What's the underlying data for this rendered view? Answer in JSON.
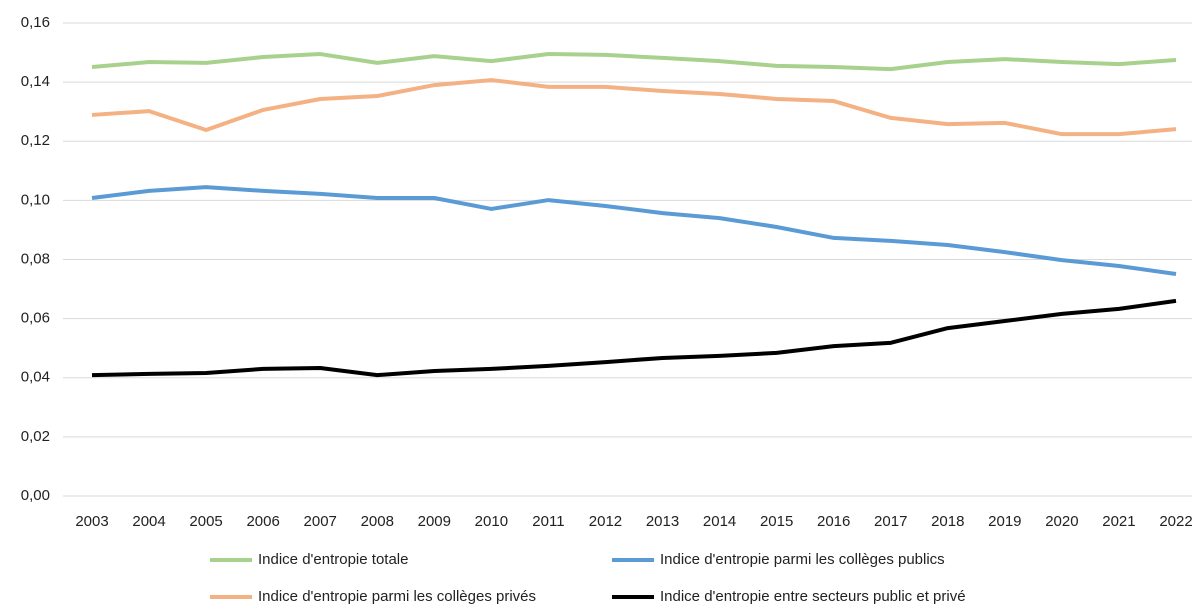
{
  "chart_data": {
    "type": "line",
    "categories": [
      "2003",
      "2004",
      "2005",
      "2006",
      "2007",
      "2008",
      "2009",
      "2010",
      "2011",
      "2012",
      "2013",
      "2014",
      "2015",
      "2016",
      "2017",
      "2018",
      "2019",
      "2020",
      "2021",
      "2022"
    ],
    "series": [
      {
        "name": "Indice d'entropie totale",
        "color": "#a9d18e",
        "values": [
          0.1451,
          0.1468,
          0.1465,
          0.1485,
          0.1495,
          0.1465,
          0.1488,
          0.1471,
          0.1495,
          0.1492,
          0.1482,
          0.1471,
          0.1455,
          0.1451,
          0.1444,
          0.1468,
          0.1478,
          0.1468,
          0.1461,
          0.1475
        ]
      },
      {
        "name": "Indice d'entropie parmi les collèges publics",
        "color": "#5b9bd5",
        "values": [
          0.1008,
          0.1032,
          0.1045,
          0.1032,
          0.1022,
          0.1008,
          0.1008,
          0.0971,
          0.1001,
          0.0981,
          0.0957,
          0.094,
          0.091,
          0.0873,
          0.0863,
          0.0849,
          0.0825,
          0.0798,
          0.0778,
          0.0751
        ]
      },
      {
        "name": "Indice d'entropie parmi les collèges privés",
        "color": "#f4b183",
        "values": [
          0.1289,
          0.1302,
          0.1238,
          0.1306,
          0.1343,
          0.1353,
          0.139,
          0.1407,
          0.1384,
          0.1384,
          0.137,
          0.136,
          0.1343,
          0.1336,
          0.1279,
          0.1258,
          0.1262,
          0.1224,
          0.1224,
          0.1241
        ]
      },
      {
        "name": "Indice d'entropie entre secteurs public et privé",
        "color": "#000000",
        "values": [
          0.0409,
          0.0413,
          0.0416,
          0.043,
          0.0433,
          0.0409,
          0.0423,
          0.043,
          0.044,
          0.0453,
          0.0467,
          0.0474,
          0.0484,
          0.0507,
          0.0518,
          0.0568,
          0.0592,
          0.0616,
          0.0633,
          0.066
        ]
      }
    ],
    "ylim": [
      0,
      0.16
    ],
    "yticks": [
      {
        "value": 0,
        "label": "0,00"
      },
      {
        "value": 0.02,
        "label": "0,02"
      },
      {
        "value": 0.04,
        "label": "0,04"
      },
      {
        "value": 0.06,
        "label": "0,06"
      },
      {
        "value": 0.08,
        "label": "0,08"
      },
      {
        "value": 0.1,
        "label": "0,10"
      },
      {
        "value": 0.12,
        "label": "0,12"
      },
      {
        "value": 0.14,
        "label": "0,14"
      },
      {
        "value": 0.16,
        "label": "0,16"
      }
    ],
    "grid": true
  }
}
